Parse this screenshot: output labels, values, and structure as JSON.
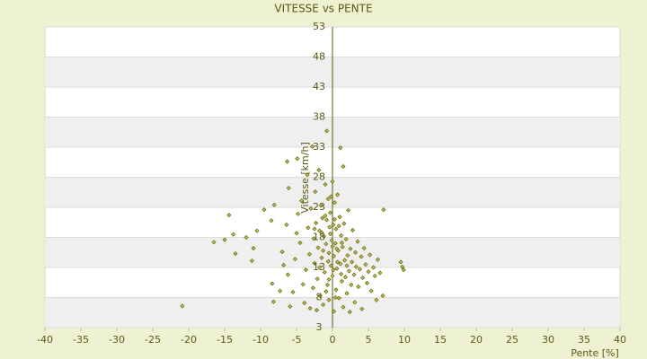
{
  "chart_data": {
    "type": "scatter",
    "title": "VITESSE vs PENTE",
    "x_label": "Pente [%]",
    "y_label": "Vitesse [km/h]",
    "color": "#6b6b08",
    "grid": true,
    "xlim": [
      -40,
      40
    ],
    "xticks": [
      -40,
      -35,
      -30,
      -25,
      -20,
      -15,
      -10,
      -5,
      0,
      5,
      10,
      15,
      20,
      25,
      30,
      35,
      40
    ],
    "ylim": [
      3,
      53
    ],
    "yticks": [
      3,
      8,
      13,
      18,
      23,
      28,
      33,
      38,
      43,
      48,
      53
    ],
    "x": [
      -20.9,
      -14.4,
      -16.5,
      -15,
      -13.5,
      -13.8,
      -12,
      -11,
      -11.2,
      -10.5,
      -9.5,
      -8.5,
      -8.1,
      -8.2,
      -8.4,
      -7.3,
      -7,
      -6.8,
      -6.3,
      -6.1,
      -6.4,
      -6.2,
      -5.9,
      -5.5,
      -5.2,
      -5,
      -4.9,
      -4.8,
      -4.5,
      -4.3,
      -4.1,
      -3.9,
      -3.7,
      -3.5,
      -3.4,
      -3.2,
      -3.1,
      -3,
      -2.8,
      -2.7,
      -2.6,
      -2.5,
      -2.4,
      -2.3,
      -2.2,
      -2.1,
      -2,
      -1.9,
      -1.8,
      -1.7,
      -1.6,
      -1.5,
      -1.4,
      -1.3,
      -1.2,
      -1.1,
      -1,
      -0.9,
      -0.8,
      -0.8,
      -0.7,
      -0.6,
      -0.5,
      -0.5,
      -0.4,
      -0.3,
      -0.2,
      -0.1,
      0,
      0,
      0.1,
      0.2,
      0.2,
      0.3,
      0.4,
      0.5,
      0.5,
      0.6,
      0.7,
      0.8,
      0.9,
      1,
      1.1,
      1.1,
      1.2,
      1.3,
      1.4,
      1.5,
      1.5,
      1.6,
      1.7,
      1.8,
      1.9,
      2,
      2.1,
      2.2,
      2.3,
      2.4,
      2.5,
      2.6,
      2.7,
      2.8,
      3,
      3.1,
      3.2,
      3.3,
      3.5,
      3.6,
      3.8,
      4,
      4.1,
      4.2,
      4.4,
      4.6,
      4.8,
      5,
      5.2,
      5.4,
      5.7,
      5.9,
      6.1,
      6.3,
      6.6,
      7.1,
      7,
      9.5,
      9.7,
      9.9,
      -1.5,
      -1,
      -0.6,
      -0.3,
      0.3,
      0.6,
      0.9,
      -0.2,
      -1.3,
      1.3,
      0.1,
      -0.9,
      0.4,
      1.2,
      -0.5,
      2,
      -2.5,
      0,
      0.7,
      -1.8
    ],
    "values": [
      6.6,
      21.7,
      17.2,
      17.6,
      15.3,
      18.5,
      18.0,
      16.2,
      14.1,
      19.1,
      22.6,
      20.8,
      23.4,
      7.3,
      10.3,
      9.1,
      15.6,
      13.4,
      30.6,
      26.2,
      20.1,
      11.8,
      6.5,
      8.9,
      14.4,
      18.7,
      31.1,
      21.9,
      17.1,
      24.1,
      10.2,
      7.1,
      12.6,
      28.4,
      19.6,
      15.2,
      6.2,
      22.8,
      33.1,
      9.6,
      17.8,
      13.7,
      25.6,
      20.4,
      5.9,
      11.1,
      16.3,
      29.2,
      19.1,
      8.3,
      23.3,
      14.6,
      21.2,
      6.8,
      18.2,
      12.2,
      26.8,
      16.9,
      35.7,
      20.9,
      10.1,
      24.4,
      15.4,
      7.6,
      19.7,
      22.1,
      13.3,
      17.5,
      27.3,
      11.6,
      20.1,
      14.9,
      5.7,
      23.8,
      17,
      9.3,
      19.4,
      12.8,
      25.1,
      15.8,
      7.9,
      21.4,
      32.9,
      13.6,
      18.3,
      10.7,
      16.4,
      29.8,
      6.4,
      20.3,
      14.2,
      11.4,
      17.7,
      8.7,
      15,
      22.5,
      12.4,
      5.6,
      16.1,
      10.1,
      13.9,
      19.2,
      11.8,
      7.2,
      15.5,
      13.1,
      17.3,
      9.8,
      12.7,
      14.8,
      6.1,
      11.3,
      16.2,
      13.5,
      10.4,
      12.3,
      15.1,
      9.1,
      13,
      11.6,
      7.6,
      14.3,
      12.1,
      22.6,
      8.3,
      13.9,
      13.1,
      12.6,
      18.8,
      21.6,
      14,
      18.6,
      21,
      16.1,
      19.9,
      24.8,
      15.8,
      17.1,
      12.6,
      9,
      8,
      11.9,
      11,
      13.3,
      19.4,
      16.5,
      13.9,
      13
    ]
  }
}
